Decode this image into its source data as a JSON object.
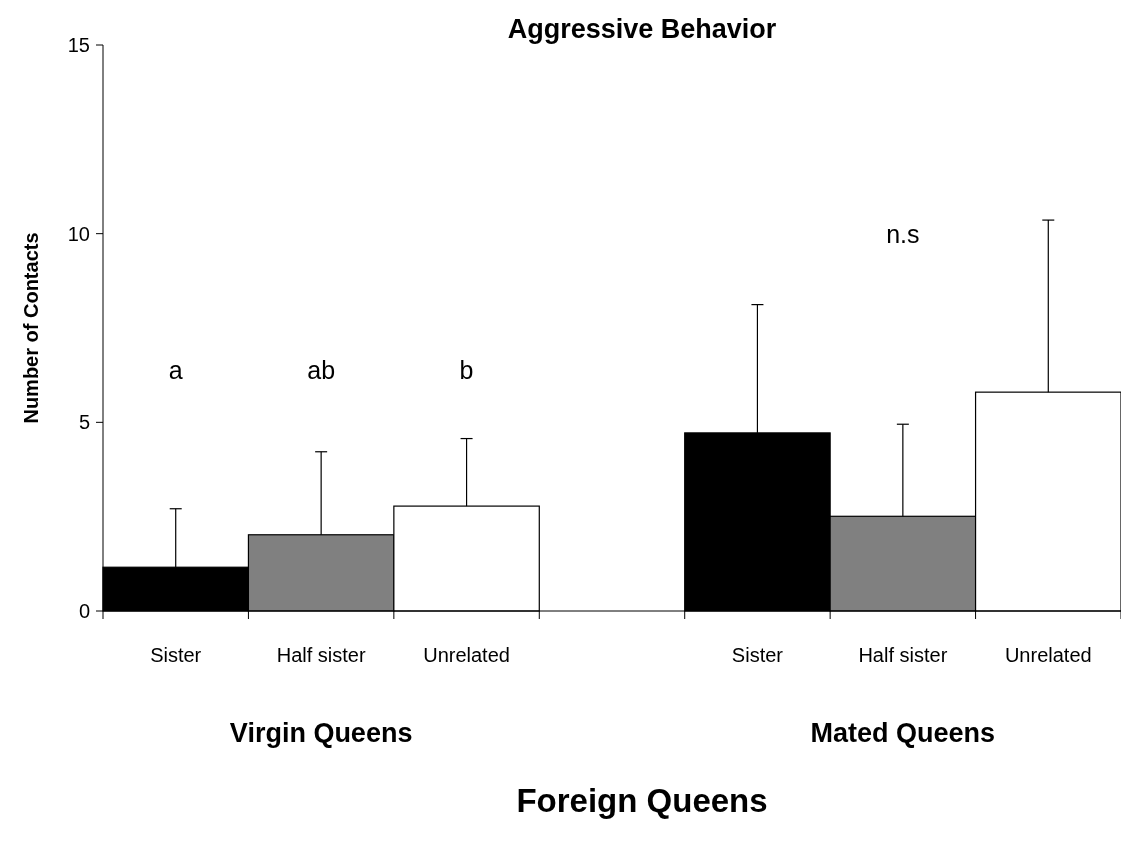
{
  "chart_data": {
    "type": "bar",
    "title": "Aggressive Behavior",
    "xlabel": "Foreign Queens",
    "ylabel": "Number of Contacts",
    "categories": [
      "Sister",
      "Half sister",
      "Unrelated",
      null,
      "Sister",
      "Half sister",
      "Unrelated"
    ],
    "values": [
      1.16,
      2.02,
      2.78,
      null,
      4.72,
      2.51,
      5.8
    ],
    "errors": [
      1.55,
      2.2,
      1.79,
      null,
      3.4,
      2.44,
      4.56
    ],
    "colors": [
      "#000000",
      "#808080",
      "#ffffff",
      null,
      "#000000",
      "#808080",
      "#ffffff"
    ],
    "ylim": [
      0,
      15
    ],
    "yticks": [
      0,
      5,
      10,
      15
    ],
    "grid": false,
    "annotations": [
      "a",
      "ab",
      "b",
      "n.s",
      "Virgin Queens",
      "Mated Queens"
    ]
  }
}
